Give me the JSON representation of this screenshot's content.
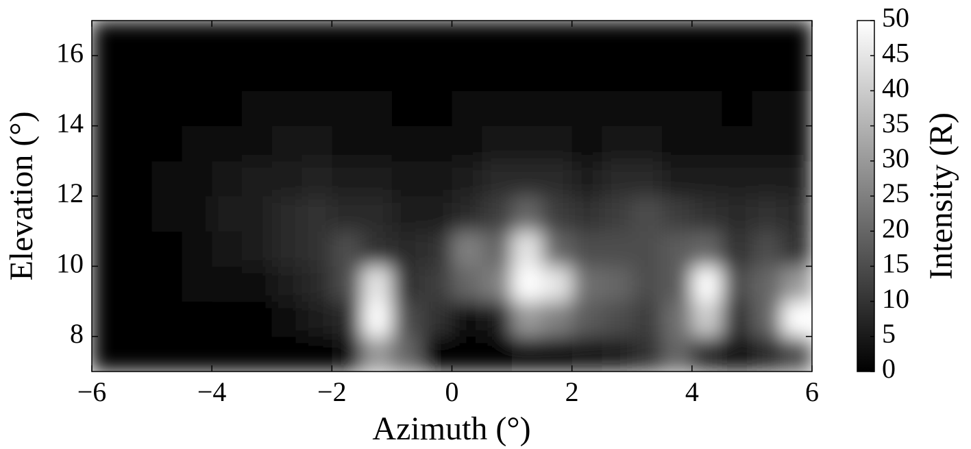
{
  "chart_data": {
    "type": "heatmap",
    "x_label": "Azimuth (°)",
    "y_label": "Elevation (°)",
    "colorbar_label": "Intensity (R)",
    "colormap": "gray",
    "x": [
      -5.75,
      -5.25,
      -4.75,
      -4.25,
      -3.75,
      -3.25,
      -2.75,
      -2.25,
      -1.75,
      -1.25,
      -0.75,
      -0.25,
      0.25,
      0.75,
      1.25,
      1.75,
      2.25,
      2.75,
      3.25,
      3.75,
      4.25,
      4.75,
      5.25,
      5.75
    ],
    "y": [
      7.5,
      8.5,
      9.5,
      10.5,
      11.5,
      12.5,
      13.5,
      14.5,
      15.5,
      16.5
    ],
    "values": [
      [
        0,
        0,
        0,
        0,
        0,
        0,
        0,
        1,
        2,
        30,
        20,
        1,
        0,
        1,
        2,
        3,
        4,
        5,
        10,
        20,
        8,
        3,
        8,
        15
      ],
      [
        0,
        0,
        0,
        0,
        1,
        1,
        3,
        5,
        8,
        50,
        15,
        10,
        2,
        5,
        30,
        25,
        18,
        15,
        12,
        22,
        40,
        10,
        20,
        50
      ],
      [
        0,
        0,
        1,
        2,
        3,
        3,
        5,
        8,
        15,
        45,
        10,
        12,
        20,
        25,
        50,
        45,
        22,
        20,
        15,
        18,
        50,
        15,
        20,
        30
      ],
      [
        0,
        0,
        1,
        2,
        4,
        6,
        8,
        10,
        15,
        10,
        8,
        10,
        25,
        20,
        45,
        20,
        15,
        15,
        15,
        18,
        20,
        10,
        15,
        10
      ],
      [
        0,
        1,
        2,
        3,
        5,
        6,
        8,
        10,
        8,
        8,
        5,
        5,
        8,
        12,
        20,
        12,
        10,
        12,
        15,
        12,
        10,
        8,
        10,
        8
      ],
      [
        0,
        1,
        2,
        3,
        4,
        5,
        6,
        7,
        6,
        5,
        4,
        4,
        6,
        8,
        8,
        8,
        6,
        8,
        8,
        6,
        6,
        5,
        6,
        5
      ],
      [
        0,
        0,
        1,
        2,
        3,
        3,
        4,
        4,
        3,
        3,
        2,
        3,
        3,
        4,
        4,
        4,
        3,
        4,
        4,
        3,
        3,
        3,
        3,
        3
      ],
      [
        0,
        0,
        0,
        1,
        1,
        2,
        2,
        2,
        2,
        2,
        1,
        1,
        2,
        2,
        2,
        2,
        2,
        2,
        2,
        2,
        2,
        1,
        2,
        2
      ],
      [
        0,
        0,
        0,
        0,
        0,
        1,
        1,
        1,
        1,
        1,
        1,
        0,
        1,
        1,
        1,
        1,
        1,
        1,
        1,
        1,
        1,
        1,
        1,
        1
      ],
      [
        0,
        0,
        0,
        0,
        0,
        0,
        0,
        0,
        0,
        0,
        0,
        0,
        0,
        0,
        0,
        0,
        0,
        0,
        0,
        0,
        0,
        0,
        0,
        0
      ]
    ],
    "xlim": [
      -6,
      6
    ],
    "xticks": [
      {
        "value": -6,
        "label": "−6"
      },
      {
        "value": -4,
        "label": "−4"
      },
      {
        "value": -2,
        "label": "−2"
      },
      0,
      2,
      4,
      6
    ],
    "ylim": [
      7,
      17
    ],
    "yticks": [
      8,
      10,
      12,
      14,
      16
    ],
    "clim": [
      0,
      50
    ],
    "cticks": [
      0,
      5,
      10,
      15,
      20,
      25,
      30,
      35,
      40,
      45,
      50
    ]
  }
}
